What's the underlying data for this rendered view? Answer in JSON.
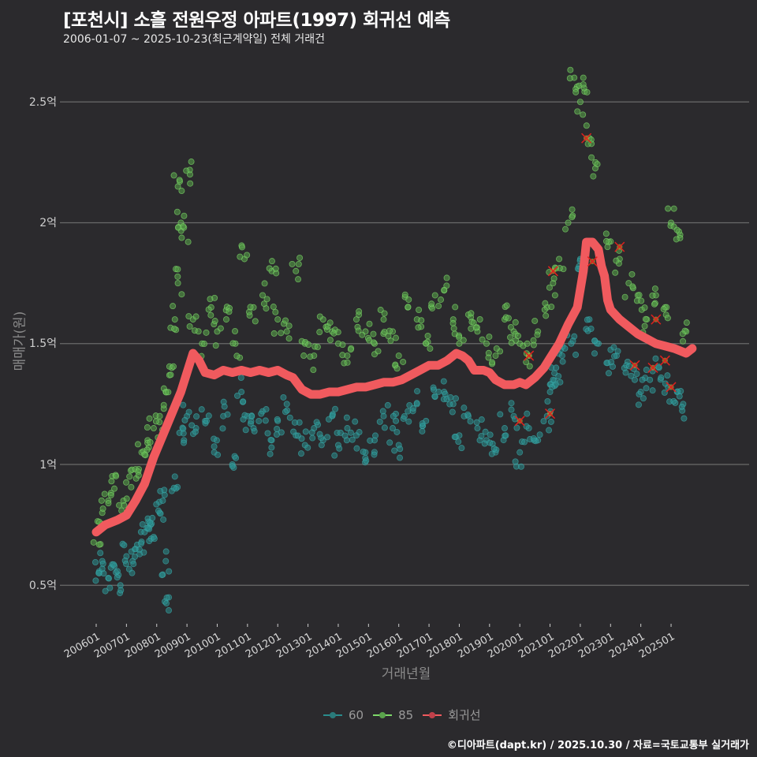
{
  "header": {
    "title": "[포천시] 소흘 전원우정 아파트(1997) 회귀선 예측",
    "subtitle": "2006-01-07 ~ 2025-10-23(최근계약일) 전체 거래건"
  },
  "axes": {
    "ylabel": "매매가(원)",
    "xlabel": "거래년월",
    "yticks": [
      "2.5억",
      "2억",
      "1.5억",
      "1억",
      "0.5억"
    ],
    "xticks": [
      "200601",
      "200701",
      "200801",
      "200901",
      "201001",
      "201101",
      "201201",
      "201301",
      "201401",
      "201501",
      "201601",
      "201701",
      "201801",
      "201901",
      "202001",
      "202101",
      "202201",
      "202301",
      "202401",
      "202501"
    ]
  },
  "legend": {
    "items": [
      {
        "label": "60",
        "color": "#2a8c8c"
      },
      {
        "label": "85",
        "color": "#7ed96a"
      },
      {
        "label": "회귀선",
        "color": "#f05a5e"
      }
    ]
  },
  "caption": "©디아파트(dapt.kr) / 2025.10.30 / 자료=국토교통부 실거래가",
  "colors": {
    "background": "#2b2a2d",
    "grid": "#6a6a6a",
    "s60": "#2a9a9a",
    "s85": "#78d060",
    "regression": "#f05a5e",
    "marker_x": "#e0201e"
  },
  "chart_data": {
    "type": "scatter",
    "title": "[포천시] 소흘 전원우정 아파트(1997) 회귀선 예측",
    "subtitle": "2006-01-07 ~ 2025-10-23(최근계약일) 전체 거래건",
    "xlabel": "거래년월",
    "ylabel": "매매가(원)",
    "ylim": [
      0.38,
      2.65
    ],
    "yunit": "억",
    "xrange": [
      "2006-01",
      "2025-10"
    ],
    "grid": true,
    "legend_position": "bottom",
    "series": [
      {
        "name": "60",
        "type": "scatter",
        "points_approx": [
          [
            2006.1,
            0.55
          ],
          [
            2006.2,
            0.6
          ],
          [
            2006.4,
            0.53
          ],
          [
            2006.6,
            0.58
          ],
          [
            2006.8,
            0.5
          ],
          [
            2007.0,
            0.62
          ],
          [
            2007.2,
            0.6
          ],
          [
            2007.3,
            0.65
          ],
          [
            2007.5,
            0.68
          ],
          [
            2007.6,
            0.72
          ],
          [
            2007.8,
            0.75
          ],
          [
            2007.9,
            0.7
          ],
          [
            2008.1,
            0.8
          ],
          [
            2008.2,
            0.85
          ],
          [
            2008.3,
            0.6
          ],
          [
            2008.4,
            0.45
          ],
          [
            2008.6,
            0.95
          ],
          [
            2008.9,
            1.1
          ],
          [
            2009.0,
            1.2
          ],
          [
            2009.3,
            1.15
          ],
          [
            2009.6,
            1.18
          ],
          [
            2009.9,
            1.05
          ],
          [
            2010.2,
            1.2
          ],
          [
            2010.5,
            1.0
          ],
          [
            2010.8,
            1.3
          ],
          [
            2011.0,
            1.2
          ],
          [
            2011.2,
            1.15
          ],
          [
            2011.5,
            1.22
          ],
          [
            2011.8,
            1.1
          ],
          [
            2012.0,
            1.18
          ],
          [
            2012.3,
            1.25
          ],
          [
            2012.6,
            1.12
          ],
          [
            2012.9,
            1.08
          ],
          [
            2013.2,
            1.15
          ],
          [
            2013.5,
            1.1
          ],
          [
            2013.8,
            1.2
          ],
          [
            2014.0,
            1.08
          ],
          [
            2014.3,
            1.15
          ],
          [
            2014.6,
            1.12
          ],
          [
            2014.9,
            1.05
          ],
          [
            2015.2,
            1.1
          ],
          [
            2015.5,
            1.2
          ],
          [
            2015.8,
            1.15
          ],
          [
            2016.0,
            1.08
          ],
          [
            2016.3,
            1.22
          ],
          [
            2016.6,
            1.25
          ],
          [
            2016.9,
            1.18
          ],
          [
            2017.2,
            1.28
          ],
          [
            2017.5,
            1.3
          ],
          [
            2017.8,
            1.25
          ],
          [
            2018.0,
            1.12
          ],
          [
            2018.3,
            1.2
          ],
          [
            2018.6,
            1.15
          ],
          [
            2018.9,
            1.1
          ],
          [
            2019.2,
            1.05
          ],
          [
            2019.5,
            1.15
          ],
          [
            2019.8,
            1.2
          ],
          [
            2020.0,
            1.05
          ],
          [
            2020.3,
            1.15
          ],
          [
            2020.6,
            1.1
          ],
          [
            2020.9,
            1.2
          ],
          [
            2021.0,
            1.3
          ],
          [
            2021.1,
            1.35
          ],
          [
            2021.2,
            1.4
          ],
          [
            2021.4,
            1.45
          ],
          [
            2021.7,
            1.5
          ],
          [
            2022.0,
            1.85
          ],
          [
            2022.3,
            1.6
          ],
          [
            2022.6,
            1.5
          ],
          [
            2022.9,
            1.42
          ],
          [
            2023.2,
            1.45
          ],
          [
            2023.5,
            1.38
          ],
          [
            2023.8,
            1.35
          ],
          [
            2024.0,
            1.3
          ],
          [
            2024.3,
            1.35
          ],
          [
            2024.6,
            1.4
          ],
          [
            2024.9,
            1.32
          ],
          [
            2025.2,
            1.3
          ],
          [
            2025.4,
            1.25
          ]
        ]
      },
      {
        "name": "85",
        "type": "scatter",
        "points_approx": [
          [
            2006.0,
            0.72
          ],
          [
            2006.2,
            0.8
          ],
          [
            2006.4,
            0.85
          ],
          [
            2006.6,
            0.9
          ],
          [
            2006.9,
            0.85
          ],
          [
            2007.1,
            0.95
          ],
          [
            2007.3,
            0.98
          ],
          [
            2007.5,
            1.05
          ],
          [
            2007.7,
            1.1
          ],
          [
            2007.9,
            1.15
          ],
          [
            2008.1,
            1.2
          ],
          [
            2008.3,
            1.3
          ],
          [
            2008.5,
            1.4
          ],
          [
            2008.6,
            1.6
          ],
          [
            2008.7,
            1.75
          ],
          [
            2008.7,
            2.15
          ],
          [
            2008.8,
            2.0
          ],
          [
            2008.9,
            1.98
          ],
          [
            2009.1,
            2.2
          ],
          [
            2009.2,
            1.6
          ],
          [
            2009.5,
            1.5
          ],
          [
            2009.8,
            1.65
          ],
          [
            2010.0,
            1.55
          ],
          [
            2010.3,
            1.6
          ],
          [
            2010.6,
            1.5
          ],
          [
            2010.9,
            1.85
          ],
          [
            2011.2,
            1.65
          ],
          [
            2011.5,
            1.7
          ],
          [
            2011.8,
            1.8
          ],
          [
            2012.0,
            1.6
          ],
          [
            2012.3,
            1.55
          ],
          [
            2012.6,
            1.8
          ],
          [
            2012.9,
            1.5
          ],
          [
            2013.2,
            1.45
          ],
          [
            2013.5,
            1.6
          ],
          [
            2013.8,
            1.55
          ],
          [
            2014.0,
            1.5
          ],
          [
            2014.3,
            1.45
          ],
          [
            2014.6,
            1.6
          ],
          [
            2014.9,
            1.55
          ],
          [
            2015.2,
            1.5
          ],
          [
            2015.5,
            1.6
          ],
          [
            2015.8,
            1.55
          ],
          [
            2016.0,
            1.45
          ],
          [
            2016.3,
            1.65
          ],
          [
            2016.6,
            1.6
          ],
          [
            2016.9,
            1.5
          ],
          [
            2017.2,
            1.7
          ],
          [
            2017.5,
            1.72
          ],
          [
            2017.8,
            1.6
          ],
          [
            2018.0,
            1.5
          ],
          [
            2018.3,
            1.62
          ],
          [
            2018.6,
            1.55
          ],
          [
            2018.9,
            1.5
          ],
          [
            2019.2,
            1.45
          ],
          [
            2019.5,
            1.6
          ],
          [
            2019.8,
            1.55
          ],
          [
            2020.0,
            1.5
          ],
          [
            2020.3,
            1.45
          ],
          [
            2020.6,
            1.55
          ],
          [
            2020.9,
            1.65
          ],
          [
            2021.1,
            1.75
          ],
          [
            2021.3,
            1.85
          ],
          [
            2021.6,
            2.0
          ],
          [
            2021.8,
            2.6
          ],
          [
            2022.0,
            2.5
          ],
          [
            2022.1,
            2.6
          ],
          [
            2022.3,
            2.35
          ],
          [
            2022.5,
            2.25
          ],
          [
            2022.9,
            1.9
          ],
          [
            2023.3,
            1.85
          ],
          [
            2023.6,
            1.75
          ],
          [
            2023.9,
            1.7
          ],
          [
            2024.2,
            1.6
          ],
          [
            2024.5,
            1.7
          ],
          [
            2024.8,
            1.65
          ],
          [
            2025.0,
            2.0
          ],
          [
            2025.3,
            1.95
          ],
          [
            2025.5,
            1.55
          ]
        ]
      },
      {
        "name": "회귀선",
        "type": "line",
        "points": [
          [
            2006.0,
            0.72
          ],
          [
            2006.3,
            0.75
          ],
          [
            2006.7,
            0.77
          ],
          [
            2007.0,
            0.79
          ],
          [
            2007.3,
            0.85
          ],
          [
            2007.6,
            0.92
          ],
          [
            2007.9,
            1.03
          ],
          [
            2008.2,
            1.12
          ],
          [
            2008.5,
            1.21
          ],
          [
            2008.8,
            1.3
          ],
          [
            2009.0,
            1.38
          ],
          [
            2009.2,
            1.46
          ],
          [
            2009.4,
            1.43
          ],
          [
            2009.6,
            1.38
          ],
          [
            2009.9,
            1.37
          ],
          [
            2010.2,
            1.39
          ],
          [
            2010.5,
            1.38
          ],
          [
            2010.8,
            1.39
          ],
          [
            2011.1,
            1.38
          ],
          [
            2011.4,
            1.39
          ],
          [
            2011.7,
            1.38
          ],
          [
            2012.0,
            1.39
          ],
          [
            2012.3,
            1.37
          ],
          [
            2012.5,
            1.36
          ],
          [
            2012.8,
            1.31
          ],
          [
            2013.1,
            1.29
          ],
          [
            2013.4,
            1.29
          ],
          [
            2013.7,
            1.3
          ],
          [
            2014.0,
            1.3
          ],
          [
            2014.3,
            1.31
          ],
          [
            2014.6,
            1.32
          ],
          [
            2014.9,
            1.32
          ],
          [
            2015.2,
            1.33
          ],
          [
            2015.5,
            1.34
          ],
          [
            2015.8,
            1.34
          ],
          [
            2016.1,
            1.35
          ],
          [
            2016.4,
            1.37
          ],
          [
            2016.7,
            1.39
          ],
          [
            2017.0,
            1.41
          ],
          [
            2017.3,
            1.41
          ],
          [
            2017.6,
            1.43
          ],
          [
            2017.9,
            1.46
          ],
          [
            2018.1,
            1.45
          ],
          [
            2018.3,
            1.43
          ],
          [
            2018.5,
            1.39
          ],
          [
            2018.8,
            1.39
          ],
          [
            2019.0,
            1.38
          ],
          [
            2019.2,
            1.35
          ],
          [
            2019.5,
            1.33
          ],
          [
            2019.8,
            1.33
          ],
          [
            2020.0,
            1.34
          ],
          [
            2020.2,
            1.33
          ],
          [
            2020.5,
            1.36
          ],
          [
            2020.8,
            1.4
          ],
          [
            2021.0,
            1.44
          ],
          [
            2021.3,
            1.5
          ],
          [
            2021.6,
            1.58
          ],
          [
            2021.9,
            1.65
          ],
          [
            2022.1,
            1.8
          ],
          [
            2022.2,
            1.92
          ],
          [
            2022.4,
            1.92
          ],
          [
            2022.6,
            1.89
          ],
          [
            2022.7,
            1.82
          ],
          [
            2022.8,
            1.78
          ],
          [
            2022.9,
            1.68
          ],
          [
            2023.0,
            1.64
          ],
          [
            2023.3,
            1.6
          ],
          [
            2023.6,
            1.57
          ],
          [
            2023.9,
            1.54
          ],
          [
            2024.2,
            1.52
          ],
          [
            2024.5,
            1.5
          ],
          [
            2024.8,
            1.49
          ],
          [
            2025.1,
            1.48
          ],
          [
            2025.3,
            1.47
          ],
          [
            2025.5,
            1.46
          ],
          [
            2025.7,
            1.48
          ]
        ]
      }
    ],
    "highlight_markers_x": [
      [
        2022.2,
        2.35
      ],
      [
        2021.1,
        1.8
      ],
      [
        2022.4,
        1.84
      ],
      [
        2023.3,
        1.9
      ],
      [
        2020.3,
        1.45
      ],
      [
        2024.5,
        1.6
      ],
      [
        2020.0,
        1.18
      ],
      [
        2021.0,
        1.21
      ],
      [
        2023.8,
        1.41
      ],
      [
        2024.4,
        1.4
      ],
      [
        2024.8,
        1.43
      ],
      [
        2025.0,
        1.32
      ]
    ]
  }
}
